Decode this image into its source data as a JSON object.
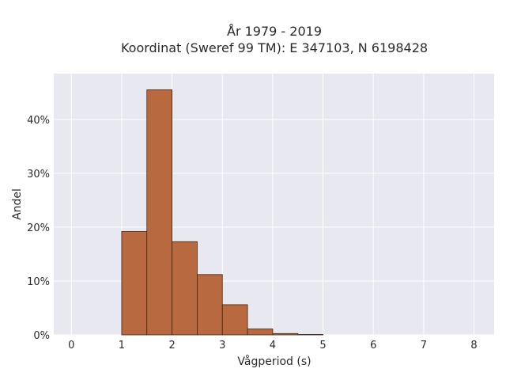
{
  "chart_data": {
    "type": "bar",
    "title_line1": "År 1979 - 2019",
    "title_line2": "Koordinat (Sweref 99 TM): E 347103, N 6198428",
    "xlabel": "Vågperiod (s)",
    "ylabel": "Andel",
    "xlim": [
      -0.35,
      8.4
    ],
    "ylim": [
      0,
      48.5
    ],
    "x_ticks": [
      0,
      1,
      2,
      3,
      4,
      5,
      6,
      7,
      8
    ],
    "y_ticks": [
      0,
      10,
      20,
      30,
      40
    ],
    "y_tick_labels": [
      "0%",
      "10%",
      "20%",
      "30%",
      "40%"
    ],
    "bin_width": 0.5,
    "bins": [
      {
        "start": 1.0,
        "value": 19.2
      },
      {
        "start": 1.5,
        "value": 45.5
      },
      {
        "start": 2.0,
        "value": 17.3
      },
      {
        "start": 2.5,
        "value": 11.2
      },
      {
        "start": 3.0,
        "value": 5.6
      },
      {
        "start": 3.5,
        "value": 1.1
      },
      {
        "start": 4.0,
        "value": 0.25
      },
      {
        "start": 4.5,
        "value": 0.08
      }
    ],
    "grid": true,
    "colors": {
      "bar_fill": "#b9693f",
      "bar_stroke": "#3d2516",
      "plot_bg": "#e8e8f0",
      "grid": "#ffffff"
    }
  }
}
